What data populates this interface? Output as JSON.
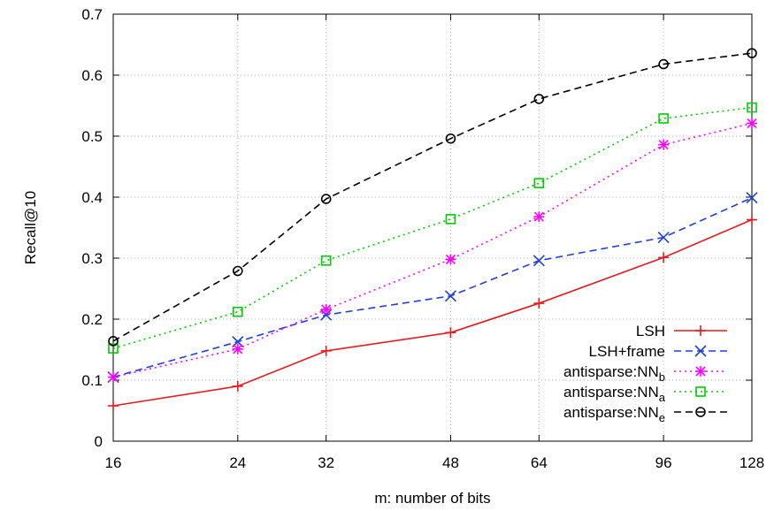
{
  "chart_data": {
    "type": "line",
    "title": "",
    "xlabel": "m: number of bits",
    "ylabel": "Recall@10",
    "x_scale": "log2",
    "x": [
      16,
      24,
      32,
      48,
      64,
      96,
      128
    ],
    "x_tick_labels": [
      "16",
      "24",
      "32",
      "48",
      "64",
      "96",
      "128"
    ],
    "xlim": [
      16,
      128
    ],
    "ylim": [
      0,
      0.7
    ],
    "y_ticks": [
      0,
      0.1,
      0.2,
      0.3,
      0.4,
      0.5,
      0.6,
      0.7
    ],
    "y_tick_labels": [
      "0",
      "0.1",
      "0.2",
      "0.3",
      "0.4",
      "0.5",
      "0.6",
      "0.7"
    ],
    "grid": true,
    "legend_position": "bottom-right",
    "series": [
      {
        "name": "LSH",
        "legend": {
          "main": "LSH",
          "sub": ""
        },
        "color": "#e41a1c",
        "dash": "solid",
        "marker": "plus",
        "values": [
          0.058,
          0.09,
          0.148,
          0.178,
          0.226,
          0.301,
          0.363
        ]
      },
      {
        "name": "LSH+frame",
        "legend": {
          "main": "LSH+frame",
          "sub": ""
        },
        "color": "#1f3fd6",
        "dash": "dashed",
        "marker": "cross",
        "values": [
          0.105,
          0.163,
          0.207,
          0.238,
          0.296,
          0.334,
          0.399
        ]
      },
      {
        "name": "antisparse:NNb",
        "legend": {
          "main": "antisparse:NN",
          "sub": "b"
        },
        "color": "#ff00ff",
        "dash": "dotted",
        "marker": "star",
        "values": [
          0.105,
          0.151,
          0.216,
          0.298,
          0.368,
          0.486,
          0.521
        ]
      },
      {
        "name": "antisparse:NNa",
        "legend": {
          "main": "antisparse:NN",
          "sub": "a"
        },
        "color": "#00cc00",
        "dash": "dotted",
        "marker": "square",
        "values": [
          0.152,
          0.212,
          0.296,
          0.364,
          0.423,
          0.529,
          0.547
        ]
      },
      {
        "name": "antisparse:NNe",
        "legend": {
          "main": "antisparse:NN",
          "sub": "e"
        },
        "color": "#000000",
        "dash": "dashed",
        "marker": "circle",
        "values": [
          0.164,
          0.279,
          0.397,
          0.496,
          0.561,
          0.618,
          0.636
        ]
      }
    ]
  }
}
